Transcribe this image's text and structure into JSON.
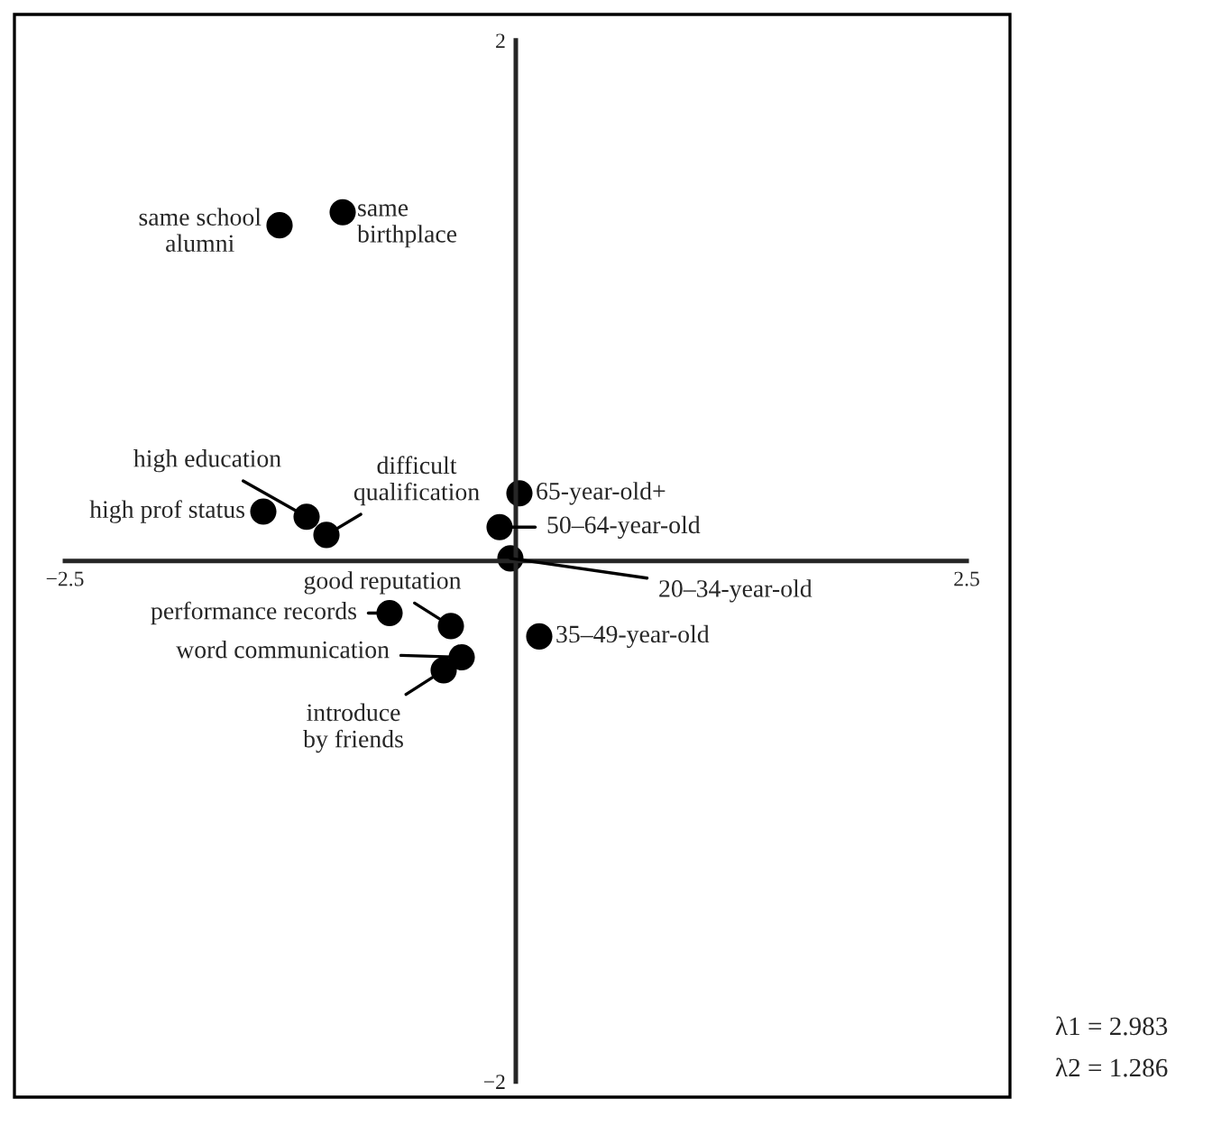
{
  "chart_data": {
    "type": "scatter",
    "x": [
      -1.31,
      -0.96,
      -1.4,
      -1.16,
      -1.05,
      0.02,
      -0.09,
      -0.03,
      0.13,
      -0.36,
      -0.7,
      -0.3,
      -0.4
    ],
    "values": [
      1.29,
      1.34,
      0.19,
      0.17,
      0.1,
      0.26,
      0.13,
      0.01,
      -0.29,
      -0.25,
      -0.2,
      -0.37,
      -0.42
    ],
    "color": "#000000",
    "marker": "circle",
    "grid": false,
    "xlim": [
      -2.78,
      2.74
    ],
    "ylim": [
      -2.06,
      2.1
    ],
    "xticks": [
      {
        "value": -2.5,
        "label": "−2.5"
      },
      {
        "value": 2.5,
        "label": "2.5"
      }
    ],
    "yticks": [
      {
        "value": -2,
        "label": "−2"
      },
      {
        "value": 2,
        "label": "2"
      }
    ],
    "annotations": [
      {
        "text": "same school\nalumni",
        "x": -1.31,
        "y": 1.29
      },
      {
        "text": "same\nbirthplace",
        "x": -0.96,
        "y": 1.34
      },
      {
        "text": "high prof status",
        "x": -1.4,
        "y": 0.19
      },
      {
        "text": "high education",
        "x": -1.16,
        "y": 0.17
      },
      {
        "text": "difficult\nqualification",
        "x": -1.05,
        "y": 0.1
      },
      {
        "text": "65-year-old+",
        "x": 0.02,
        "y": 0.26
      },
      {
        "text": "50–64-year-old",
        "x": -0.09,
        "y": 0.13
      },
      {
        "text": "20–34-year-old",
        "x": -0.03,
        "y": 0.01
      },
      {
        "text": "35–49-year-old",
        "x": 0.13,
        "y": -0.29
      },
      {
        "text": "good reputation",
        "x": -0.36,
        "y": -0.25
      },
      {
        "text": "performance records",
        "x": -0.7,
        "y": -0.2
      },
      {
        "text": "word communication",
        "x": -0.3,
        "y": -0.37
      },
      {
        "text": "introduce\nby friends",
        "x": -0.4,
        "y": -0.42
      },
      "λ1 = 2.983",
      "λ2 = 1.286"
    ]
  }
}
